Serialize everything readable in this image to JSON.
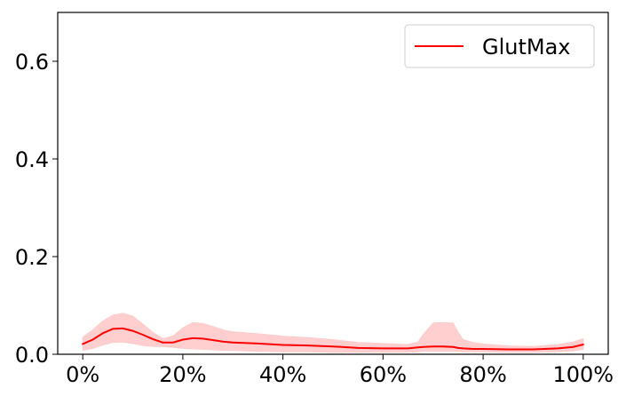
{
  "chart_data": {
    "type": "line",
    "title": "",
    "xlabel": "",
    "ylabel": "",
    "xlim": [
      -5,
      105
    ],
    "ylim": [
      0,
      0.7
    ],
    "grid": false,
    "legend_position": "top-right",
    "x_ticks": [
      {
        "value": 0,
        "label": "0%"
      },
      {
        "value": 20,
        "label": "20%"
      },
      {
        "value": 40,
        "label": "40%"
      },
      {
        "value": 60,
        "label": "60%"
      },
      {
        "value": 80,
        "label": "80%"
      },
      {
        "value": 100,
        "label": "100%"
      }
    ],
    "y_ticks": [
      {
        "value": 0.0,
        "label": "0.0"
      },
      {
        "value": 0.2,
        "label": "0.2"
      },
      {
        "value": 0.4,
        "label": "0.4"
      },
      {
        "value": 0.6,
        "label": "0.6"
      }
    ],
    "series": [
      {
        "name": "GlutMax",
        "color": "#ff0000",
        "band_color": "#ffcccc",
        "x": [
          0,
          2,
          4,
          6,
          8,
          10,
          12,
          14,
          16,
          18,
          20,
          22,
          24,
          26,
          28,
          30,
          35,
          40,
          45,
          50,
          55,
          60,
          65,
          67,
          68,
          70,
          72,
          74,
          75,
          76,
          78,
          80,
          85,
          90,
          95,
          98,
          100
        ],
        "mean": [
          0.021,
          0.03,
          0.043,
          0.052,
          0.053,
          0.048,
          0.04,
          0.031,
          0.024,
          0.024,
          0.03,
          0.033,
          0.032,
          0.029,
          0.026,
          0.024,
          0.022,
          0.019,
          0.018,
          0.016,
          0.013,
          0.012,
          0.012,
          0.014,
          0.015,
          0.016,
          0.016,
          0.015,
          0.013,
          0.012,
          0.011,
          0.011,
          0.01,
          0.01,
          0.012,
          0.015,
          0.02
        ],
        "upper": [
          0.035,
          0.05,
          0.068,
          0.08,
          0.084,
          0.078,
          0.062,
          0.045,
          0.032,
          0.037,
          0.054,
          0.065,
          0.063,
          0.057,
          0.05,
          0.046,
          0.042,
          0.037,
          0.034,
          0.03,
          0.024,
          0.022,
          0.02,
          0.025,
          0.04,
          0.064,
          0.065,
          0.064,
          0.045,
          0.03,
          0.024,
          0.021,
          0.017,
          0.016,
          0.02,
          0.025,
          0.032
        ],
        "lower": [
          0.008,
          0.012,
          0.019,
          0.024,
          0.025,
          0.022,
          0.018,
          0.016,
          0.016,
          0.014,
          0.012,
          0.011,
          0.01,
          0.009,
          0.008,
          0.008,
          0.006,
          0.005,
          0.005,
          0.004,
          0.004,
          0.004,
          0.004,
          0.005,
          0.006,
          0.006,
          0.006,
          0.006,
          0.006,
          0.005,
          0.005,
          0.005,
          0.004,
          0.004,
          0.005,
          0.007,
          0.01
        ]
      }
    ]
  }
}
